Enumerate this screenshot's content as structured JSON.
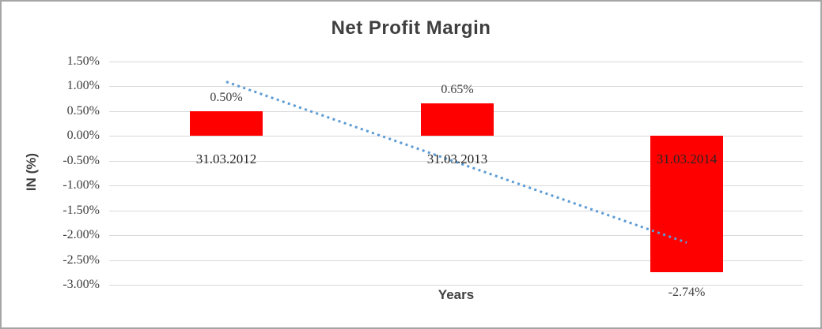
{
  "chart_data": {
    "type": "bar",
    "title": "Net Profit Margin",
    "xlabel": "Years",
    "ylabel": "IN (%)",
    "categories": [
      "31.03.2012",
      "31.03.2013",
      "31.03.2014"
    ],
    "series": [
      {
        "name": "Net Profit Margin",
        "values": [
          0.5,
          0.65,
          -2.74
        ],
        "data_labels": [
          "0.50%",
          "0.65%",
          "-2.74%"
        ],
        "color": "#FF0000"
      }
    ],
    "y_tick_labels": [
      "1.50%",
      "1.00%",
      "0.50%",
      "0.00%",
      "-0.50%",
      "-1.00%",
      "-1.50%",
      "-2.00%",
      "-2.50%",
      "-3.00%"
    ],
    "y_tick_values": [
      1.5,
      1.0,
      0.5,
      0.0,
      -0.5,
      -1.0,
      -1.5,
      -2.0,
      -2.5,
      -3.0
    ],
    "ylim": [
      -3.0,
      1.5
    ],
    "grid": true,
    "legend": "none",
    "trendline": {
      "type": "linear",
      "style": "dotted",
      "color": "#5B9BD5",
      "points": [
        {
          "category_index": 0,
          "value": 1.09
        },
        {
          "category_index": 2,
          "value": -2.15
        }
      ]
    }
  },
  "colors": {
    "bar": "#FF0000",
    "trendline": "#5B9BD5",
    "gridline": "#D9D9D9",
    "text": "#3F3F3F",
    "frame_border": "#A6A6A6"
  }
}
